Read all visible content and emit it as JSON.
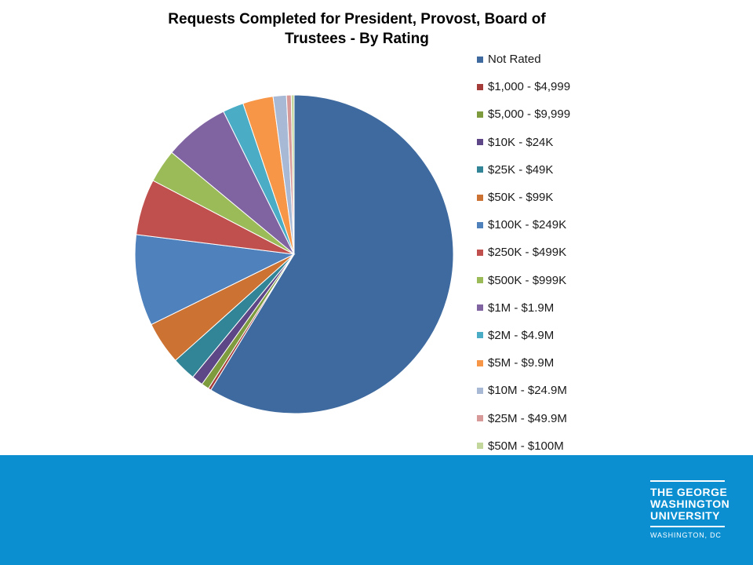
{
  "chart_data": {
    "type": "pie",
    "title": "Requests Completed for President, Provost, Board of Trustees - By Rating",
    "legend_position": "right",
    "slices": [
      {
        "label": "Not Rated",
        "value": 61.0,
        "color": "#3f6a9f"
      },
      {
        "label": "$1,000 - $4,999",
        "value": 0.3,
        "color": "#a43c3a"
      },
      {
        "label": "$5,000 - $9,999",
        "value": 0.8,
        "color": "#7e9b3d"
      },
      {
        "label": "$10K - $24K",
        "value": 1.2,
        "color": "#5e4786"
      },
      {
        "label": "$25K - $49K",
        "value": 2.5,
        "color": "#318597"
      },
      {
        "label": "$50K - $99K",
        "value": 4.5,
        "color": "#cc7232"
      },
      {
        "label": "$100K - $249K",
        "value": 9.6,
        "color": "#4f81bd"
      },
      {
        "label": "$250K - $499K",
        "value": 5.9,
        "color": "#c0504d"
      },
      {
        "label": "$500K - $999K",
        "value": 3.5,
        "color": "#9bbb59"
      },
      {
        "label": "$1M - $1.9M",
        "value": 6.9,
        "color": "#8064a2"
      },
      {
        "label": "$2M - $4.9M",
        "value": 2.2,
        "color": "#4bacc6"
      },
      {
        "label": "$5M - $9.9M",
        "value": 3.2,
        "color": "#f79646"
      },
      {
        "label": "$10M - $24.9M",
        "value": 1.4,
        "color": "#a8b9d6"
      },
      {
        "label": "$25M - $49.9M",
        "value": 0.5,
        "color": "#d89a99"
      },
      {
        "label": "$50M - $100M",
        "value": 0.3,
        "color": "#c3d69b"
      }
    ]
  },
  "footer": {
    "background": "#0b8fd1",
    "logo_lines": [
      "THE GEORGE",
      "WASHINGTON",
      "UNIVERSITY"
    ],
    "logo_location": "WASHINGTON, DC"
  }
}
